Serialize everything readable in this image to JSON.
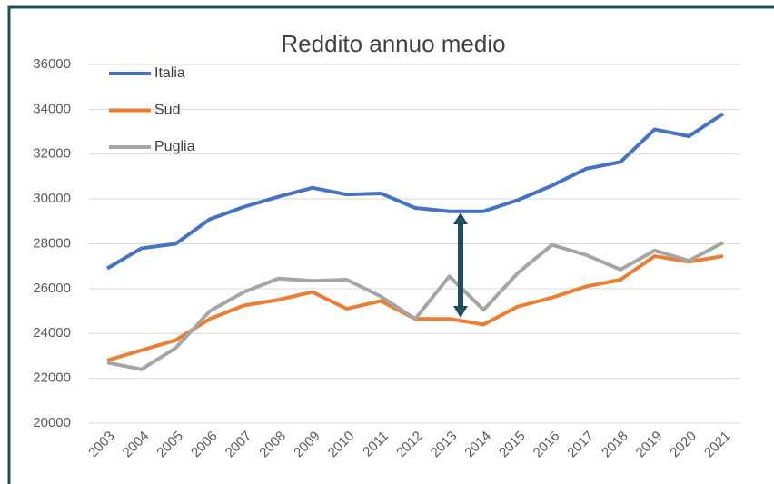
{
  "chart_data": {
    "type": "line",
    "title": "Reddito annuo medio",
    "categories": [
      "2003",
      "2004",
      "2005",
      "2006",
      "2007",
      "2008",
      "2009",
      "2010",
      "2011",
      "2012",
      "2013",
      "2014",
      "2015",
      "2016",
      "2017",
      "2018",
      "2019",
      "2020",
      "2021"
    ],
    "series": [
      {
        "name": "Italia",
        "color": "#4472c4",
        "values": [
          26900,
          27800,
          28000,
          29100,
          29650,
          30100,
          30500,
          30200,
          30250,
          29600,
          29450,
          29450,
          29950,
          30600,
          31350,
          31650,
          33100,
          32800,
          33800
        ]
      },
      {
        "name": "Sud",
        "color": "#ed7d31",
        "values": [
          22800,
          23250,
          23700,
          24650,
          25250,
          25500,
          25850,
          25100,
          25450,
          24650,
          24650,
          24400,
          25200,
          25600,
          26100,
          26400,
          27450,
          27200,
          27450
        ]
      },
      {
        "name": "Puglia",
        "color": "#a5a5a5",
        "values": [
          22700,
          22400,
          23350,
          25000,
          25850,
          26450,
          26350,
          26400,
          25650,
          24650,
          26550,
          25050,
          26700,
          27950,
          27500,
          26850,
          27700,
          27250,
          28050
        ]
      }
    ],
    "ylim": [
      20000,
      36000
    ],
    "yticks": [
      20000,
      22000,
      24000,
      26000,
      28000,
      30000,
      32000,
      34000,
      36000
    ],
    "grid": true,
    "legend": "top-left"
  }
}
